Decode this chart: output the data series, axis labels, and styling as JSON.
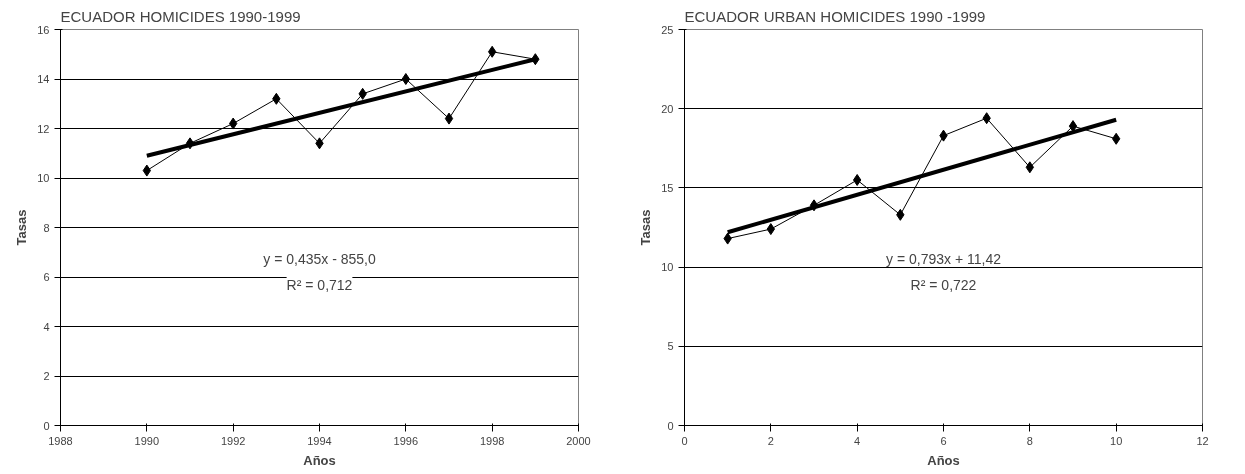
{
  "chart_data": [
    {
      "type": "line",
      "title": "ECUADOR HOMICIDES 1990-1999",
      "xlabel": "Años",
      "ylabel": "Tasas",
      "x": [
        1990,
        1991,
        1992,
        1993,
        1994,
        1995,
        1996,
        1997,
        1998,
        1999
      ],
      "series": [
        {
          "color": "#000000",
          "marker": "diamond",
          "values": [
            10.3,
            11.4,
            12.2,
            13.2,
            11.4,
            13.4,
            14.0,
            12.4,
            15.1,
            14.8
          ]
        },
        {
          "color": "#000000",
          "marker": "none",
          "x": [
            1990,
            1999
          ],
          "values": [
            10.9,
            14.8
          ]
        }
      ],
      "xlim": [
        1988,
        2000
      ],
      "xticks": [
        1988,
        1990,
        1992,
        1994,
        1996,
        1998,
        2000
      ],
      "ylim": [
        0,
        16
      ],
      "yticks": [
        0,
        2,
        4,
        6,
        8,
        10,
        12,
        14,
        16
      ],
      "grid": "y",
      "annotations": [
        "y = 0,435x - 855,0",
        "R² = 0,712"
      ]
    },
    {
      "type": "line",
      "title": "ECUADOR URBAN HOMICIDES 1990 -1999",
      "xlabel": "Años",
      "ylabel": "Tasas",
      "x": [
        1,
        2,
        3,
        4,
        5,
        6,
        7,
        8,
        9,
        10
      ],
      "series": [
        {
          "color": "#000000",
          "marker": "diamond",
          "values": [
            11.8,
            12.4,
            13.9,
            15.5,
            13.3,
            18.3,
            19.4,
            16.3,
            18.9,
            18.1
          ]
        },
        {
          "color": "#000000",
          "marker": "none",
          "x": [
            1,
            10
          ],
          "values": [
            12.2,
            19.3
          ]
        }
      ],
      "xlim": [
        0,
        12
      ],
      "xticks": [
        0,
        2,
        4,
        6,
        8,
        10,
        12
      ],
      "ylim": [
        0,
        25
      ],
      "yticks": [
        0,
        5,
        10,
        15,
        20,
        25
      ],
      "grid": "y",
      "annotations": [
        "y = 0,793x + 11,42",
        "R² = 0,722"
      ]
    }
  ]
}
